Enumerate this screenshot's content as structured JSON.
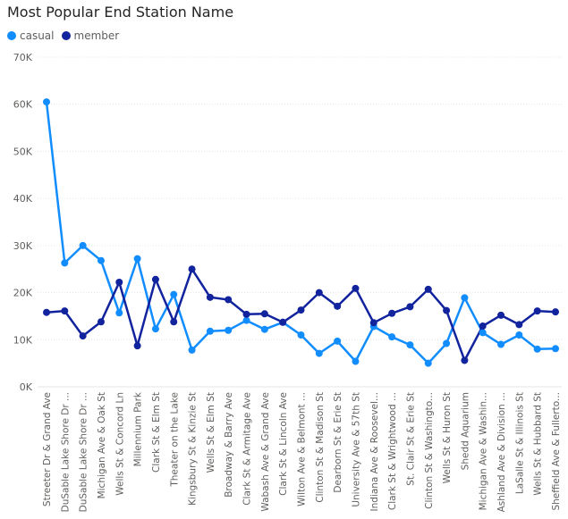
{
  "chart_data": {
    "type": "line",
    "title": "Most Popular End Station Name",
    "xlabel": "",
    "ylabel": "",
    "ylim": [
      0,
      70000
    ],
    "yticks": [
      0,
      10000,
      20000,
      30000,
      40000,
      50000,
      60000,
      70000
    ],
    "ytick_labels": [
      "0K",
      "10K",
      "20K",
      "30K",
      "40K",
      "50K",
      "60K",
      "70K"
    ],
    "grid": true,
    "legend_position": "top-left",
    "categories": [
      "Streeter Dr & Grand Ave",
      "DuSable Lake Shore Dr ...",
      "DuSable Lake Shore Dr ...",
      "Michigan Ave & Oak St",
      "Wells St & Concord Ln",
      "Millennium Park",
      "Clark St & Elm St",
      "Theater on the Lake",
      "Kingsbury St & Kinzie St",
      "Wells St & Elm St",
      "Broadway & Barry Ave",
      "Clark St & Armitage Ave",
      "Wabash Ave & Grand Ave",
      "Clark St & Lincoln Ave",
      "Wilton Ave & Belmont ...",
      "Clinton St & Madison St",
      "Dearborn St & Erie St",
      "University Ave & 57th St",
      "Indiana Ave & Roosevel...",
      "Clark St & Wrightwood ...",
      "St. Clair St & Erie St",
      "Clinton St & Washingto...",
      "Wells St & Huron St",
      "Shedd Aquarium",
      "Michigan Ave & Washin...",
      "Ashland Ave & Division ...",
      "LaSalle St & Illinois St",
      "Wells St & Hubbard St",
      "Sheffield Ave & Fullerto..."
    ],
    "series": [
      {
        "name": "casual",
        "color": "#118DFF",
        "values": [
          60500,
          26300,
          30000,
          26800,
          15700,
          27200,
          12300,
          19600,
          7800,
          11800,
          12000,
          14100,
          12200,
          13700,
          11000,
          7100,
          9700,
          5400,
          12800,
          10600,
          8900,
          5000,
          9200,
          18900,
          11500,
          9000,
          11000,
          8000,
          8100
        ]
      },
      {
        "name": "member",
        "color": "#12239E",
        "values": [
          15800,
          16100,
          10800,
          13800,
          22200,
          8700,
          22800,
          13800,
          25000,
          19000,
          18500,
          15400,
          15500,
          13700,
          16300,
          20000,
          17100,
          20900,
          13600,
          15600,
          17000,
          20700,
          16200,
          5600,
          12900,
          15200,
          13200,
          16100,
          15900
        ]
      }
    ]
  }
}
